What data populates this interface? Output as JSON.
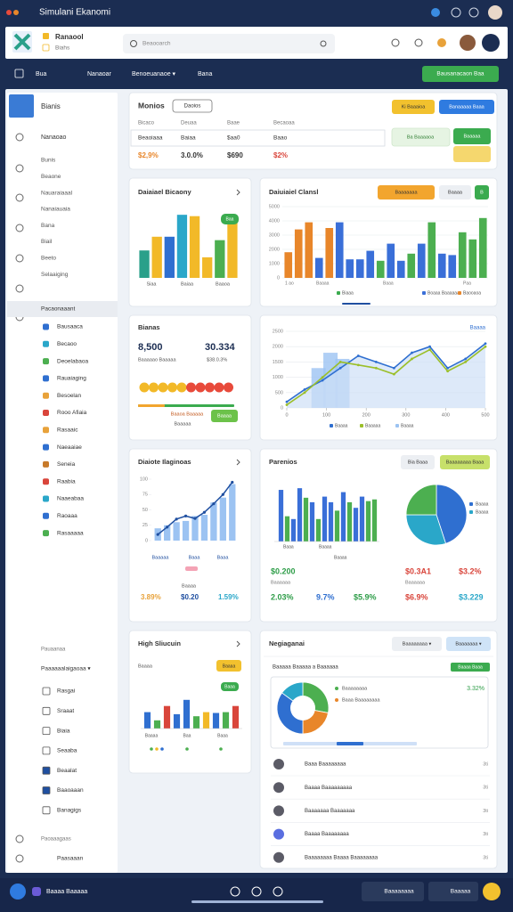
{
  "window": {
    "title": "Simulani Ekanomi"
  },
  "header": {
    "brand": "Ranaool",
    "brand_sub": "Biahs",
    "search": "Beaooarch"
  },
  "nav": {
    "items": [
      "Bua",
      "Nanaoar",
      "Benoeuanaoe ▾",
      "Bana"
    ],
    "action": "Bausanacaon Baa"
  },
  "sidebar": {
    "profile": "Bianis",
    "items": [
      "Nanaoao",
      "Bunis",
      "Beaone",
      "Nauaraiaaal",
      "Nanaiauaia",
      "Bana",
      "Biail",
      "Beeto",
      "Selaaiging"
    ],
    "active": "Pacaonaaant",
    "apps": [
      "Bausaaca",
      "Becaoo",
      "Deoelabaoa",
      "Rauaiaging",
      "Besoelan",
      "Rooo Afiaia",
      "Rasaaic",
      "Naeaaiae",
      "Seneia",
      "Raabia",
      "Naaeabaa",
      "Raoaaa",
      "Rasaaaaa"
    ],
    "app_colors": [
      "#2f6fd0",
      "#2aa7c9",
      "#4caf50",
      "#2f6fd0",
      "#e8a23a",
      "#d9453b",
      "#e8a23a",
      "#2f6fd0",
      "#c77a2a",
      "#d9453b",
      "#2aa7c9",
      "#2f6fd0",
      "#4caf50"
    ],
    "lower_title": "Pauaanaa",
    "lower_select": "Paaaaaalaigaoaa ▾",
    "lower_items": [
      "Rasgai",
      "Sraaat",
      "Biaia",
      "Seaaba",
      "Beaalat",
      "Baaoaaan",
      "Banagigs"
    ],
    "footer": [
      "Paoaaagaas",
      "Paasaaan"
    ]
  },
  "summary": {
    "title": "Monios",
    "filter": "Daoios",
    "columns": [
      "Bicaco",
      "Deuaa",
      "Baae",
      "Becaoaa"
    ],
    "row": [
      "Beaoiaaa",
      "Baiaa",
      "$aa0",
      "Baao"
    ],
    "totals": [
      "$2,9%",
      "3.0.0%",
      "$690",
      "$2%"
    ],
    "total_colors": [
      "#e8862a",
      "#333333",
      "#333333",
      "#d9453b"
    ],
    "buttons": [
      "Ki Baaaioa",
      "Banaaaaa Baaa"
    ],
    "tag": "Ba Baaaaoa",
    "tag2": "Baaaaa"
  },
  "sales": {
    "title": "Daiaiael Bicaony",
    "badge": "Baa",
    "labels": [
      "Siaa",
      "Baiaa",
      "Baaoa"
    ],
    "ylim": [
      0,
      100
    ],
    "values": [
      40,
      60,
      60,
      92,
      90,
      30,
      55,
      80
    ],
    "colors": [
      "#2aa08a",
      "#f2b928",
      "#2f6fd0",
      "#2aa7c9",
      "#f2b928",
      "#f2b928",
      "#4caf50",
      "#f2b928"
    ]
  },
  "channels": {
    "title": "Daiuiaiel Clansl",
    "buttons": [
      "Baaaaaaa",
      "Baaaa",
      "B"
    ],
    "ylim": [
      0,
      5000
    ],
    "yticks": [
      0,
      1000,
      2000,
      3000,
      4000,
      5000
    ],
    "values": [
      1800,
      3400,
      3900,
      1400,
      3500,
      3900,
      1300,
      1300,
      1900,
      1200,
      2400,
      1200,
      1700,
      2400,
      3900,
      1700,
      1600,
      3200,
      2700,
      4200
    ],
    "colors": [
      "#e8862a",
      "#e8862a",
      "#e8862a",
      "#3a6fd8",
      "#e8862a",
      "#3a6fd8",
      "#3a6fd8",
      "#3a6fd8",
      "#3a6fd8",
      "#4caf50",
      "#3a6fd8",
      "#3a6fd8",
      "#4caf50",
      "#3a6fd8",
      "#4caf50",
      "#3a6fd8",
      "#3a6fd8",
      "#4caf50",
      "#4caf50",
      "#4caf50"
    ],
    "labels": [
      "1 ao",
      "Baaaa",
      "Baaa",
      "Paa"
    ],
    "legend": [
      "Biaaa",
      "Boaaa Baaaaaa",
      "Baooaoa"
    ]
  },
  "balance": {
    "title": "Bianas",
    "figures": [
      "8,500",
      "30.334"
    ],
    "notes": [
      "Baaaaao Baaaaa",
      "$38.0.3%"
    ],
    "dot_colors": [
      "#f2b928",
      "#f2b928",
      "#f2b928",
      "#f2b928",
      "#f2b928",
      "#e84a3b",
      "#e84a3b",
      "#e84a3b",
      "#e84a3b",
      "#e84a3b"
    ],
    "tag": "Baaaa",
    "note2": "Baaoa Baaaaa",
    "caption": "Baaaaa"
  },
  "trend": {
    "corner": "Baaaa",
    "xlim": [
      0,
      500
    ],
    "xticks": [
      0,
      100,
      200,
      300,
      400,
      500
    ],
    "ylim": [
      0,
      2500
    ],
    "yticks": [
      0,
      500,
      1000,
      1500,
      2000,
      2500
    ],
    "x": [
      0,
      45,
      90,
      135,
      180,
      225,
      270,
      315,
      360,
      405,
      450,
      500
    ],
    "series": [
      {
        "name": "Baaaa",
        "color": "#2f6fd0",
        "values": [
          200,
          600,
          900,
          1300,
          1700,
          1500,
          1300,
          1800,
          2000,
          1300,
          1600,
          2100
        ]
      },
      {
        "name": "Baaaaa",
        "color": "#9bbf2a",
        "values": [
          100,
          500,
          1000,
          1500,
          1400,
          1300,
          1100,
          1600,
          1900,
          1200,
          1500,
          2000
        ]
      }
    ],
    "bars": {
      "name": "Baaaa",
      "color": "#9cc3f2",
      "x": [
        80,
        110,
        140
      ],
      "values": [
        1300,
        1800,
        1600
      ]
    }
  },
  "growth": {
    "title": "Diaiote Ilaginoas",
    "ylim": [
      0,
      100
    ],
    "yticks": [
      0,
      25,
      50,
      75,
      100
    ],
    "bar_values": [
      20,
      25,
      30,
      32,
      40,
      42,
      62,
      70,
      92
    ],
    "line_values": [
      10,
      22,
      35,
      40,
      36,
      46,
      60,
      75,
      95
    ],
    "bar_color": "#9cc3f2",
    "line_color": "#1f4fa0",
    "labels": [
      "Baaaaa",
      "Baaa",
      "Baaa"
    ],
    "caption": "Baaaa",
    "figures": [
      "3.89%",
      "$0.20",
      "1.59%"
    ],
    "figure_colors": [
      "#e8a23a",
      "#1f4fa0",
      "#2aa7c9"
    ]
  },
  "regions": {
    "title": "Parenios",
    "buttons": [
      "Bia Baaa",
      "Baaaaaaaa Baaa"
    ],
    "ylim": [
      0,
      100
    ],
    "values": [
      92,
      45,
      40,
      95,
      78,
      70,
      40,
      80,
      70,
      55,
      88,
      70,
      60,
      80,
      72,
      75
    ],
    "colors": [
      "#3a6fd8",
      "#4caf50",
      "#3a6fd8",
      "#3a6fd8",
      "#4caf50",
      "#3a6fd8",
      "#4caf50",
      "#3a6fd8",
      "#3a6fd8",
      "#4caf50",
      "#3a6fd8",
      "#4caf50",
      "#3a6fd8",
      "#3a6fd8",
      "#4caf50",
      "#4caf50"
    ],
    "labels": [
      "Baaa",
      "Baaaa",
      "Baaaa"
    ],
    "pie": {
      "values": [
        45,
        30,
        25
      ],
      "colors": [
        "#2f6fd0",
        "#2aa7c9",
        "#4caf50"
      ]
    },
    "legend": [
      "Baaaa",
      "Baaaa"
    ],
    "figures": [
      "$0.200",
      "$0.3A1",
      "$3.2%",
      "Baaaaaa",
      "Baaaaaa",
      "2.03%",
      "9.7%",
      "$5.9%",
      "$6.9%",
      "$3.229"
    ],
    "figure_colors": [
      "#2e9d48",
      "#d9453b",
      "#d9453b",
      "#777777",
      "#777777",
      "#2e9d48",
      "#2f6fd0",
      "#2e9d48",
      "#d9453b",
      "#2aa7c9"
    ]
  },
  "highlights": {
    "title": "High Sliucuin",
    "caption": "Baaaa",
    "button": "Baaaa",
    "badge": "Baaa",
    "ylim": [
      0,
      100
    ],
    "values": [
      40,
      20,
      55,
      35,
      70,
      30,
      40,
      38,
      40,
      55
    ],
    "colors": [
      "#2f6fd0",
      "#4caf50",
      "#d9453b",
      "#2f6fd0",
      "#2f6fd0",
      "#4caf50",
      "#f2b928",
      "#2f6fd0",
      "#4caf50",
      "#d9453b"
    ],
    "labels": [
      "Baaaa",
      "Baa",
      "Baaa"
    ]
  },
  "negotiations": {
    "title": "Negiaganai",
    "selects": [
      "Baaaaaaaa ▾",
      "Baaaaaaa ▾"
    ],
    "subtitle": "Baaaaa Baaaaa a Baaaaaa",
    "tag": "Baaaa Baaa",
    "donut": {
      "values": [
        28,
        22,
        35,
        15
      ],
      "colors": [
        "#4caf50",
        "#e8862a",
        "#2f6fd0",
        "#2aa7c9"
      ]
    },
    "legend": [
      "Baaaaaaaa",
      "Baaa Baaaaaaaa"
    ],
    "percent": "3.32%",
    "rows": [
      {
        "name": "Baaa Baaaaaaaa",
        "time": "3ti"
      },
      {
        "name": "Baaaa Baaaaaaaaa",
        "time": "3ti"
      },
      {
        "name": "Baaaaaaa Baaaaaaa",
        "time": "3ti"
      },
      {
        "name": "Baaaa Baaaaaaaa",
        "time": "3ti"
      },
      {
        "name": "Baaaaaaaa Baaaa Baaaaaaaa",
        "time": "3ti"
      }
    ]
  },
  "taskbar": {
    "label": "Baaaa Baaaaa",
    "buttons": [
      "Baaaaaaaa",
      "Baaaaa"
    ]
  }
}
